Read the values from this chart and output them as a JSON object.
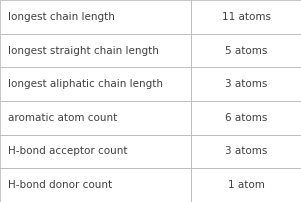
{
  "rows": [
    {
      "label": "longest chain length",
      "value": "11 atoms"
    },
    {
      "label": "longest straight chain length",
      "value": "5 atoms"
    },
    {
      "label": "longest aliphatic chain length",
      "value": "3 atoms"
    },
    {
      "label": "aromatic atom count",
      "value": "6 atoms"
    },
    {
      "label": "H-bond acceptor count",
      "value": "3 atoms"
    },
    {
      "label": "H-bond donor count",
      "value": "1 atom"
    }
  ],
  "bg_color": "#ffffff",
  "border_color": "#b0b0b0",
  "text_color": "#404040",
  "font_size": 7.5,
  "col_split": 0.635,
  "fig_width": 3.01,
  "fig_height": 2.02,
  "dpi": 100
}
